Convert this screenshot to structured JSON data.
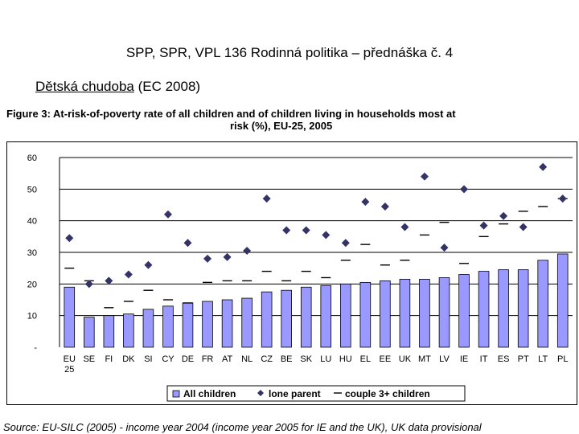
{
  "slide": {
    "title": "SPP, SPR, VPL 136 Rodinná politika – přednáška č. 4",
    "subtitle_underlined": "Dětská chudoba",
    "subtitle_rest": " (EC 2008)"
  },
  "figure": {
    "title_line1": "Figure 3: At-risk-of-poverty rate of all children and of children living in households most at",
    "title_line2": "risk (%), EU-25, 2005",
    "source": "Source: EU-SILC (2005) - income year 2004 (income year 2005 for IE and the UK), UK data provisional"
  },
  "colors": {
    "bar": "#9999ff",
    "diamond": "#333366",
    "dash": "#000000",
    "grid": "#000000"
  },
  "chart_data": {
    "type": "bar",
    "title": "At-risk-of-poverty rate of all children and of children living in households most at risk (%), EU-25, 2005",
    "categories": [
      "EU 25",
      "SE",
      "FI",
      "DK",
      "SI",
      "CY",
      "DE",
      "FR",
      "AT",
      "NL",
      "CZ",
      "BE",
      "SK",
      "LU",
      "HU",
      "EL",
      "EE",
      "UK",
      "MT",
      "LV",
      "IE",
      "IT",
      "ES",
      "PT",
      "LT",
      "PL"
    ],
    "series": [
      {
        "name": "All children",
        "marker": "bar",
        "values": [
          19,
          9.5,
          10,
          10.5,
          12,
          13,
          14,
          14.5,
          15,
          15.5,
          17.5,
          18,
          19,
          19.5,
          20,
          20.5,
          21,
          21.5,
          21.5,
          22,
          23,
          24,
          24.5,
          24.5,
          27.5,
          29.5
        ]
      },
      {
        "name": "lone parent",
        "marker": "diamond",
        "values": [
          34.5,
          20,
          21,
          23,
          26,
          42,
          33,
          28,
          28.5,
          30.5,
          47,
          37,
          37,
          35.5,
          33,
          46,
          44.5,
          38,
          54,
          31.5,
          50,
          38.5,
          41.5,
          38,
          57,
          47
        ]
      },
      {
        "name": "couple 3+ children",
        "marker": "dash",
        "values": [
          25,
          21,
          12.5,
          14.5,
          18,
          15,
          14,
          20.5,
          21,
          21,
          24,
          21,
          24,
          22,
          27.5,
          32.5,
          26,
          27.5,
          35.5,
          39.5,
          26.5,
          35,
          39,
          43,
          44.5,
          47
        ]
      }
    ],
    "ylim": [
      0,
      60
    ],
    "yticks": [
      60,
      50,
      40,
      30,
      20,
      10,
      0
    ],
    "ytick_labels": [
      "60",
      "50",
      "40",
      "30",
      "20",
      "10",
      "-"
    ],
    "legend": {
      "position": "bottom",
      "labels": [
        "All children",
        "lone parent",
        "couple 3+ children"
      ]
    }
  }
}
